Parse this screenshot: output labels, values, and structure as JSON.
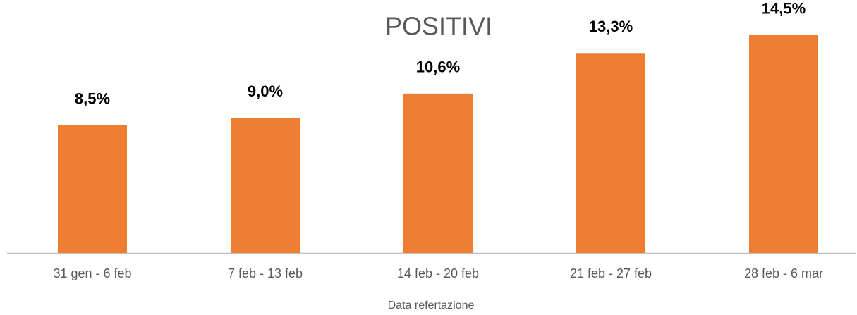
{
  "chart_data": {
    "type": "bar",
    "title": "POSITIVI",
    "x_label": "Data refertazione",
    "categories": [
      "31 gen - 6 feb",
      "7 feb - 13 feb",
      "14 feb - 20 feb",
      "21 feb - 27 feb",
      "28 feb - 6 mar"
    ],
    "values": [
      8.5,
      9.0,
      10.6,
      13.3,
      14.5
    ],
    "value_labels": [
      "8,5%",
      "9,0%",
      "10,6%",
      "13,3%",
      "14,5%"
    ],
    "color": "#ed7d31",
    "ylim": [
      0,
      15
    ],
    "grid": false
  }
}
